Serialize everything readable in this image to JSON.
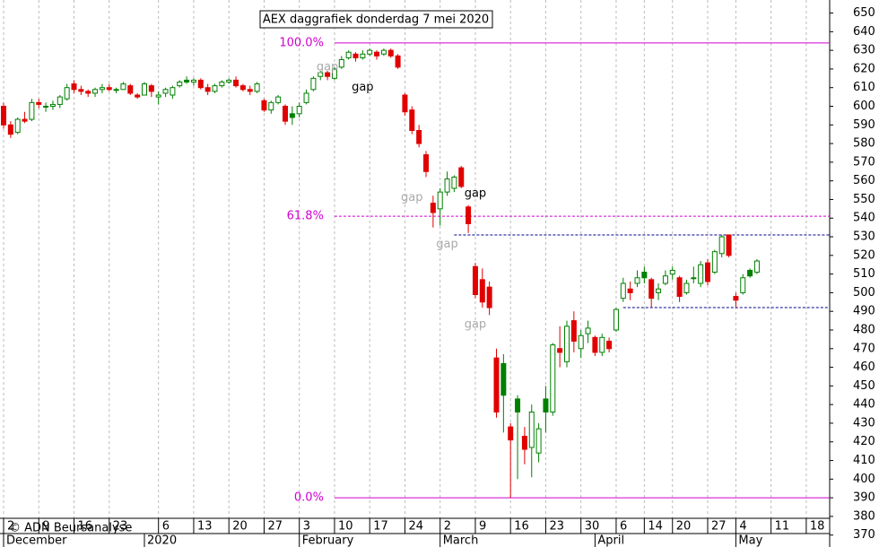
{
  "chart_data": {
    "type": "candlestick",
    "title": "AEX daggrafiek donderdag 7 mei 2020",
    "credit": "© ADN Beursanalyse",
    "x": [
      "Dec 2",
      "Dec 3",
      "Dec 4",
      "Dec 5",
      "Dec 6",
      "Dec 9",
      "Dec 10",
      "Dec 11",
      "Dec 12",
      "Dec 13",
      "Dec 16",
      "Dec 17",
      "Dec 18",
      "Dec 19",
      "Dec 20",
      "Dec 23",
      "Dec 24",
      "Dec 27",
      "Dec 30",
      "Dec 31",
      "Jan 2",
      "Jan 3",
      "Jan 6",
      "Jan 7",
      "Jan 8",
      "Jan 9",
      "Jan 10",
      "Jan 13",
      "Jan 14",
      "Jan 15",
      "Jan 16",
      "Jan 17",
      "Jan 20",
      "Jan 21",
      "Jan 22",
      "Jan 23",
      "Jan 24",
      "Jan 27",
      "Jan 28",
      "Jan 29",
      "Jan 30",
      "Jan 31",
      "Feb 3",
      "Feb 4",
      "Feb 5",
      "Feb 6",
      "Feb 7",
      "Feb 10",
      "Feb 11",
      "Feb 12",
      "Feb 13",
      "Feb 14",
      "Feb 17",
      "Feb 18",
      "Feb 19",
      "Feb 20",
      "Feb 21",
      "Feb 24",
      "Feb 25",
      "Feb 26",
      "Feb 27",
      "Feb 28",
      "Mar 2",
      "Mar 3",
      "Mar 4",
      "Mar 5",
      "Mar 6",
      "Mar 9",
      "Mar 10",
      "Mar 11",
      "Mar 12",
      "Mar 13",
      "Mar 16",
      "Mar 17",
      "Mar 18",
      "Mar 19",
      "Mar 20",
      "Mar 23",
      "Mar 24",
      "Mar 25",
      "Mar 26",
      "Mar 27",
      "Mar 30",
      "Mar 31",
      "Apr 1",
      "Apr 2",
      "Apr 3",
      "Apr 6",
      "Apr 7",
      "Apr 8",
      "Apr 9",
      "Apr 14",
      "Apr 15",
      "Apr 16",
      "Apr 17",
      "Apr 20",
      "Apr 21",
      "Apr 22",
      "Apr 23",
      "Apr 24",
      "Apr 27",
      "Apr 28",
      "Apr 29",
      "Apr 30",
      "May 4",
      "May 5",
      "May 6",
      "May 7"
    ],
    "open": [
      600,
      590,
      586,
      593,
      593,
      602,
      600,
      600,
      601,
      604,
      612,
      609,
      608,
      607,
      609,
      610,
      609,
      609,
      611,
      606,
      606,
      611,
      605,
      607,
      606,
      611,
      614,
      613,
      614,
      610,
      608,
      611,
      613,
      614,
      611,
      609,
      608,
      603,
      598,
      602,
      600,
      596,
      596,
      602,
      609,
      616,
      618,
      615,
      621,
      626,
      628,
      626,
      628,
      629,
      628,
      630,
      627,
      606,
      598,
      587,
      574,
      548,
      545,
      554,
      556,
      567,
      546,
      514,
      507,
      503,
      465,
      462,
      428,
      443,
      423,
      417,
      414,
      443,
      436,
      470,
      463,
      485,
      470,
      478,
      476,
      468,
      474,
      480,
      497,
      502,
      505,
      511,
      507,
      500,
      505,
      510,
      508,
      500,
      508,
      505,
      516,
      511,
      521,
      531,
      498,
      500,
      512,
      511
    ],
    "high": [
      602,
      592,
      594,
      597,
      604,
      604,
      602,
      603,
      606,
      612,
      614,
      611,
      609,
      610,
      612,
      612,
      610,
      613,
      612,
      607,
      613,
      612,
      608,
      610,
      611,
      614,
      616,
      615,
      615,
      612,
      612,
      614,
      615,
      616,
      612,
      611,
      613,
      604,
      603,
      606,
      601,
      600,
      602,
      609,
      616,
      619,
      619,
      621,
      627,
      630,
      629,
      630,
      631,
      630,
      631,
      631,
      628,
      607,
      600,
      590,
      576,
      552,
      556,
      565,
      563,
      568,
      547,
      516,
      513,
      506,
      470,
      467,
      430,
      445,
      428,
      440,
      430,
      450,
      473,
      482,
      485,
      490,
      480,
      485,
      477,
      478,
      476,
      492,
      508,
      506,
      512,
      514,
      508,
      505,
      512,
      514,
      509,
      507,
      514,
      517,
      518,
      523,
      531,
      531,
      500,
      510,
      513,
      518
    ],
    "low": [
      588,
      583,
      585,
      591,
      592,
      599,
      597,
      598,
      599,
      603,
      607,
      606,
      605,
      605,
      607,
      608,
      607,
      609,
      606,
      604,
      606,
      605,
      601,
      605,
      604,
      610,
      612,
      611,
      609,
      606,
      607,
      610,
      612,
      610,
      608,
      606,
      607,
      597,
      596,
      601,
      590,
      590,
      594,
      601,
      608,
      614,
      614,
      614,
      620,
      625,
      624,
      625,
      627,
      625,
      627,
      626,
      620,
      595,
      585,
      578,
      562,
      535,
      536,
      552,
      554,
      556,
      532,
      497,
      492,
      488,
      433,
      425,
      390,
      400,
      408,
      401,
      409,
      425,
      434,
      460,
      460,
      468,
      465,
      473,
      466,
      466,
      468,
      479,
      495,
      496,
      503,
      505,
      492,
      496,
      504,
      507,
      495,
      499,
      505,
      503,
      504,
      510,
      519,
      519,
      492,
      499,
      508,
      510
    ],
    "close": [
      590,
      585,
      593,
      592,
      602,
      601,
      600,
      601,
      605,
      610,
      609,
      608,
      607,
      609,
      610,
      609,
      609,
      612,
      607,
      605,
      612,
      608,
      606,
      609,
      610,
      613,
      613,
      614,
      610,
      608,
      611,
      613,
      614,
      611,
      609,
      608,
      612,
      598,
      602,
      605,
      592,
      594,
      600,
      607,
      615,
      618,
      616,
      620,
      625,
      629,
      626,
      628,
      630,
      627,
      630,
      627,
      621,
      597,
      587,
      580,
      565,
      543,
      554,
      561,
      562,
      557,
      537,
      499,
      495,
      492,
      436,
      445,
      421,
      436,
      416,
      436,
      427,
      436,
      472,
      468,
      482,
      474,
      477,
      481,
      468,
      476,
      470,
      491,
      505,
      500,
      508,
      508,
      497,
      502,
      509,
      512,
      498,
      505,
      508,
      515,
      506,
      522,
      530,
      520,
      496,
      508,
      509,
      517
    ],
    "up_color": "#008000",
    "down_color": "#e00000",
    "ylim": [
      366,
      657
    ],
    "yticks": [
      370,
      380,
      390,
      400,
      410,
      420,
      430,
      440,
      450,
      460,
      470,
      480,
      490,
      500,
      510,
      520,
      530,
      540,
      550,
      560,
      570,
      580,
      590,
      600,
      610,
      620,
      630,
      640,
      650
    ],
    "xticks": [
      {
        "value": "Dec 2",
        "label": "2"
      },
      {
        "value": "Dec 9",
        "label": "9"
      },
      {
        "value": "Dec 16",
        "label": "16"
      },
      {
        "value": "Dec 23",
        "label": "23"
      },
      {
        "value": "Jan 6",
        "label": "6"
      },
      {
        "value": "Jan 13",
        "label": "13"
      },
      {
        "value": "Jan 20",
        "label": "20"
      },
      {
        "value": "Jan 27",
        "label": "27"
      },
      {
        "value": "Feb 3",
        "label": "3"
      },
      {
        "value": "Feb 10",
        "label": "10"
      },
      {
        "value": "Feb 17",
        "label": "17"
      },
      {
        "value": "Feb 24",
        "label": "24"
      },
      {
        "value": "Mar 2",
        "label": "2"
      },
      {
        "value": "Mar 9",
        "label": "9"
      },
      {
        "value": "Mar 16",
        "label": "16"
      },
      {
        "value": "Mar 23",
        "label": "23"
      },
      {
        "value": "Mar 30",
        "label": "30"
      },
      {
        "value": "Apr 6",
        "label": "6"
      },
      {
        "value": "Apr 14",
        "label": "14"
      },
      {
        "value": "Apr 20",
        "label": "20"
      },
      {
        "value": "Apr 27",
        "label": "27"
      },
      {
        "value": "May 4",
        "label": "4"
      },
      {
        "value": "May 11",
        "label": "11"
      },
      {
        "value": "May 18",
        "label": "18"
      }
    ],
    "months": [
      {
        "value": "Dec 2",
        "label": "December"
      },
      {
        "value": "Jan 2",
        "label": "2020"
      },
      {
        "value": "Feb 3",
        "label": "February"
      },
      {
        "value": "Mar 2",
        "label": "March"
      },
      {
        "value": "Apr 1",
        "label": "April"
      },
      {
        "value": "May 4",
        "label": "May"
      }
    ],
    "grid": true,
    "levels": [
      {
        "label": "100.0%",
        "value": 634,
        "from": "Feb 10",
        "style": "solid"
      },
      {
        "label": "61.8%",
        "value": 541,
        "from": "Feb 10",
        "style": "dashed"
      },
      {
        "label": "0.0%",
        "value": 390,
        "from": "Feb 10",
        "style": "solid"
      }
    ],
    "level_color": "#d000d0",
    "support_lines": [
      {
        "value": 531,
        "from": "Mar 4"
      },
      {
        "value": 492,
        "from": "Apr 7"
      }
    ],
    "support_color": "#00008b",
    "annotations": [
      {
        "text": "gap",
        "at": "Feb 14",
        "value": 610,
        "color": "#000000"
      },
      {
        "text": "gap",
        "at": "Mar 9",
        "value": 553,
        "color": "#000000"
      },
      {
        "text": "gap",
        "at": "Feb 7",
        "value": 621,
        "color": "#aaaaaa"
      },
      {
        "text": "gap",
        "at": "Feb 25",
        "value": 551,
        "color": "#aaaaaa"
      },
      {
        "text": "gap",
        "at": "Mar 3",
        "value": 526,
        "color": "#aaaaaa"
      },
      {
        "text": "gap",
        "at": "Mar 9",
        "value": 483,
        "color": "#aaaaaa"
      }
    ]
  }
}
